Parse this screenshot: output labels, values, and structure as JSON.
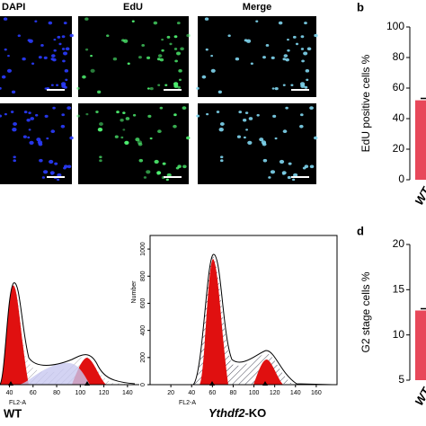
{
  "images": {
    "columns": [
      "DAPI",
      "EdU",
      "Merge"
    ]
  },
  "panel_labels": [
    "b",
    "d"
  ],
  "chart_data": [
    {
      "type": "bar",
      "ylabel": "EdU positive cells %",
      "categories": [
        "WT"
      ],
      "values": [
        52
      ],
      "errors": [
        1.2
      ],
      "color": "#e8485a",
      "ylim": [
        0,
        100
      ],
      "yticks": [
        0,
        20,
        40,
        60,
        80,
        100
      ]
    },
    {
      "type": "bar",
      "ylabel": "G2 stage cells %",
      "categories": [
        "WT"
      ],
      "values": [
        12.7
      ],
      "errors": [
        0.2
      ],
      "color": "#e8485a",
      "ylim": [
        5,
        20
      ],
      "yticks": [
        5,
        10,
        15,
        20
      ]
    }
  ],
  "flow": [
    {
      "label": "WT",
      "xlabel": "FL2-A",
      "xlim": [
        32,
        150
      ],
      "xticks": [
        40,
        60,
        80,
        100,
        120,
        140
      ]
    },
    {
      "label_italic": "Ythdf2",
      "label_suffix": "-KO",
      "xlabel": "FL2-A",
      "ylabel": "Number",
      "xlim": [
        0,
        180
      ],
      "ylim": [
        0,
        1100
      ],
      "xticks": [
        20,
        40,
        60,
        80,
        100,
        120,
        140,
        160
      ],
      "yticks": [
        0,
        200,
        400,
        600,
        800,
        1000
      ]
    }
  ]
}
